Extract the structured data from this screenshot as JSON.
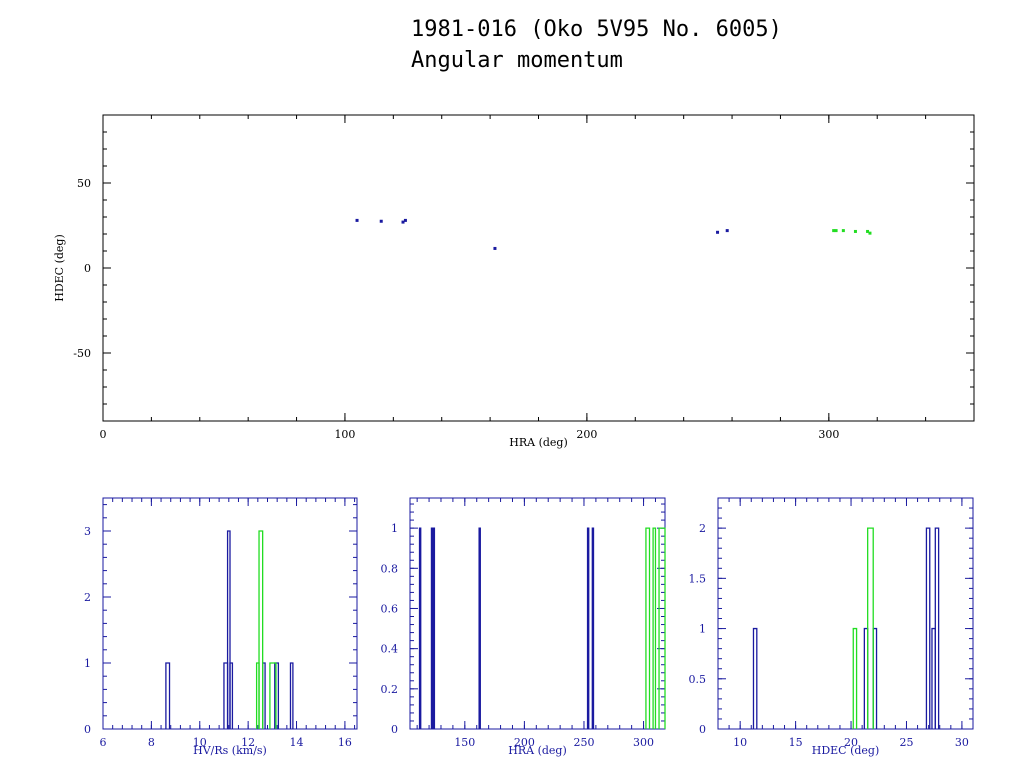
{
  "title_line1": "1981-016 (Oko 5V95 No. 6005)",
  "title_line2": "Angular momentum",
  "colors": {
    "series1": "#1a1aa0",
    "series2": "#22dd22",
    "axis": "#000000",
    "bottom_axis": "#1a1aa0"
  },
  "chart_data": [
    {
      "type": "scatter",
      "xlabel": "HRA (deg)",
      "ylabel": "HDEC (deg)",
      "xlim": [
        0,
        360
      ],
      "ylim": [
        -90,
        90
      ],
      "xticks": [
        0,
        100,
        200,
        300
      ],
      "yticks": [
        -50,
        0,
        50
      ],
      "series": [
        {
          "color": "#1a1aa0",
          "x": [
            105,
            115,
            124,
            125,
            162,
            254,
            258
          ],
          "y": [
            28,
            27.5,
            27,
            28,
            11.5,
            21,
            22
          ]
        },
        {
          "color": "#22dd22",
          "x": [
            302,
            303,
            306,
            311,
            316,
            317
          ],
          "y": [
            22,
            22,
            22,
            21.5,
            21.5,
            20.5
          ]
        }
      ]
    },
    {
      "type": "bar",
      "xlabel": "HV/Rs (km/s)",
      "ylabel": "",
      "xlim": [
        6,
        16.5
      ],
      "ylim": [
        0,
        3.5
      ],
      "xticks": [
        6,
        8,
        10,
        12,
        14,
        16
      ],
      "yticks": [
        0,
        1,
        2,
        3
      ],
      "series": [
        {
          "color": "#1a1aa0",
          "bins": [
            [
              8.6,
              8.75,
              1
            ],
            [
              11.0,
              11.15,
              1
            ],
            [
              11.15,
              11.25,
              3
            ],
            [
              11.25,
              11.35,
              1
            ],
            [
              12.6,
              12.7,
              1
            ],
            [
              13.1,
              13.25,
              1
            ],
            [
              13.75,
              13.85,
              1
            ]
          ]
        },
        {
          "color": "#22dd22",
          "bins": [
            [
              12.35,
              12.45,
              1
            ],
            [
              12.45,
              12.6,
              3
            ],
            [
              12.9,
              13.15,
              1
            ]
          ]
        }
      ]
    },
    {
      "type": "bar",
      "xlabel": "HRA (deg)",
      "ylabel": "",
      "xlim": [
        104,
        318
      ],
      "ylim": [
        0,
        1.15
      ],
      "xticks": [
        150,
        200,
        250,
        300
      ],
      "yticks": [
        0,
        0.2,
        0.4,
        0.6,
        0.8,
        1
      ],
      "series": [
        {
          "color": "#1a1aa0",
          "bins": [
            [
              112,
              113,
              1
            ],
            [
              122,
              123,
              1
            ],
            [
              123.5,
              124.5,
              1
            ],
            [
              162,
              163,
              1
            ],
            [
              253,
              254,
              1
            ],
            [
              257,
              258,
              1
            ]
          ]
        },
        {
          "color": "#22dd22",
          "bins": [
            [
              302,
              305,
              1
            ],
            [
              308,
              310,
              1
            ],
            [
              313,
              318,
              1
            ]
          ]
        }
      ]
    },
    {
      "type": "bar",
      "xlabel": "HDEC (deg)",
      "ylabel": "",
      "xlim": [
        8,
        31
      ],
      "ylim": [
        0,
        2.3
      ],
      "xticks": [
        10,
        15,
        20,
        25,
        30
      ],
      "yticks": [
        0,
        0.5,
        1,
        1.5,
        2
      ],
      "series": [
        {
          "color": "#1a1aa0",
          "bins": [
            [
              11.2,
              11.5,
              1
            ],
            [
              21.2,
              21.5,
              1
            ],
            [
              22.0,
              22.3,
              1
            ],
            [
              26.8,
              27.1,
              2
            ],
            [
              27.3,
              27.6,
              1
            ],
            [
              27.6,
              27.9,
              2
            ]
          ]
        },
        {
          "color": "#22dd22",
          "bins": [
            [
              20.2,
              20.5,
              1
            ],
            [
              21.5,
              22.0,
              2
            ]
          ]
        }
      ]
    }
  ]
}
